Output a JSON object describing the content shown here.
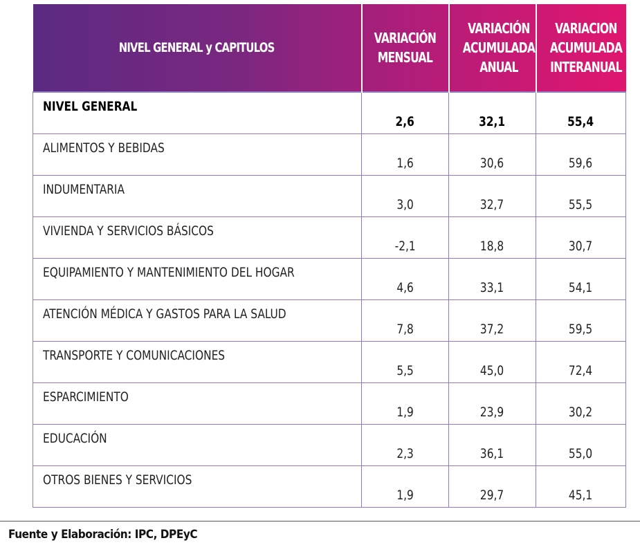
{
  "chart_data": {
    "type": "table",
    "columns": [
      [
        "NIVEL GENERAL y CAPITULOS"
      ],
      [
        "VARIACIÓN",
        "MENSUAL"
      ],
      [
        "VARIACIÓN",
        "ACUMULADA",
        "ANUAL"
      ],
      [
        "VARIACION",
        "ACUMULADA",
        "INTERANUAL"
      ]
    ],
    "rows": [
      {
        "label": "NIVEL GENERAL",
        "values": [
          "2,6",
          "32,1",
          "55,4"
        ]
      },
      {
        "label": "ALIMENTOS Y BEBIDAS",
        "values": [
          "1,6",
          "30,6",
          "59,6"
        ]
      },
      {
        "label": "INDUMENTARIA",
        "values": [
          "3,0",
          "32,7",
          "55,5"
        ]
      },
      {
        "label": "VIVIENDA Y SERVICIOS BÁSICOS",
        "values": [
          "-2,1",
          "18,8",
          "30,7"
        ]
      },
      {
        "label": "EQUIPAMIENTO Y MANTENIMIENTO DEL HOGAR",
        "values": [
          "4,6",
          "33,1",
          "54,1"
        ]
      },
      {
        "label": "ATENCIÓN MÉDICA Y GASTOS PARA LA SALUD",
        "values": [
          "7,8",
          "37,2",
          "59,5"
        ]
      },
      {
        "label": "TRANSPORTE Y COMUNICACIONES",
        "values": [
          "5,5",
          "45,0",
          "72,4"
        ]
      },
      {
        "label": "ESPARCIMIENTO",
        "values": [
          "1,9",
          "23,9",
          "30,2"
        ]
      },
      {
        "label": "EDUCACIÓN",
        "values": [
          "2,3",
          "36,1",
          "55,0"
        ]
      },
      {
        "label": "OTROS BIENES Y SERVICIOS",
        "values": [
          "1,9",
          "29,7",
          "45,1"
        ]
      }
    ],
    "header_gradient": [
      "#5b2a82",
      "#e0166f"
    ],
    "border_color": "#8e7cc3"
  },
  "footer": {
    "source": "Fuente y Elaboración: IPC, DPEyC"
  }
}
